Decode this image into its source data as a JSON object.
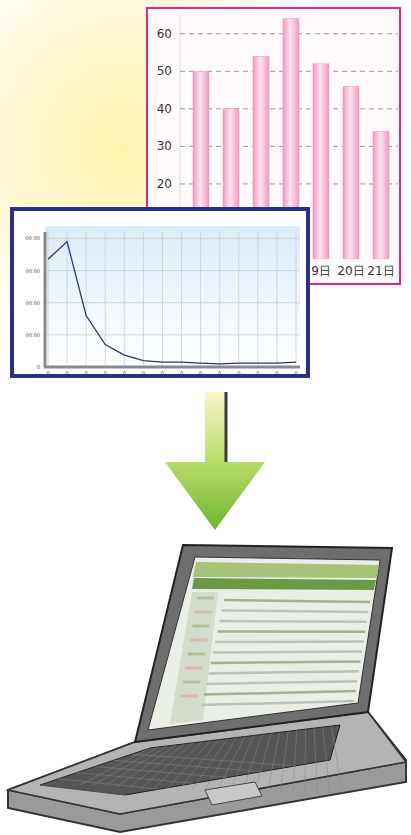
{
  "chart_data": [
    {
      "type": "bar",
      "categories": [
        null,
        null,
        null,
        null,
        "9日",
        "20日",
        "21日"
      ],
      "values": [
        50,
        40,
        54,
        64,
        52,
        46,
        34
      ],
      "color": "#f29ac2",
      "ylim": [
        0,
        65
      ],
      "yticks": [
        20,
        30,
        40,
        50,
        60
      ],
      "grid": true
    },
    {
      "type": "line",
      "categories": [
        "0",
        "0",
        "0",
        "0",
        "0",
        "0",
        "0",
        "0",
        "0",
        "0",
        "0",
        "0",
        "0",
        "0"
      ],
      "values": [
        3.35,
        3.9,
        1.6,
        0.7,
        0.37,
        0.2,
        0.15,
        0.15,
        0.12,
        0.1,
        0.12,
        0.12,
        0.12,
        0.15
      ],
      "color": "#2a2f8a",
      "ylim": [
        0,
        4.2
      ],
      "yticks": [
        0,
        {
          "value": 1,
          "label": "00:00"
        },
        {
          "value": 2,
          "label": "00:00"
        },
        {
          "value": 3,
          "label": "00:00"
        },
        {
          "value": 4,
          "label": "00:00"
        }
      ],
      "grid": true
    }
  ]
}
